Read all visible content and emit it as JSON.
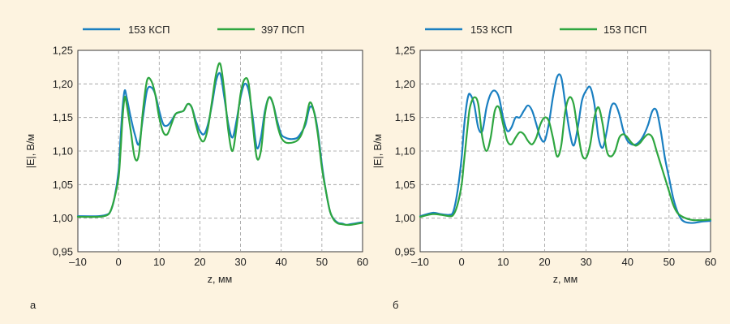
{
  "chart_data": [
    {
      "type": "line",
      "panel_label": "а",
      "xlabel": "z, мм",
      "ylabel": "|E|, В/м",
      "xlim": [
        -10,
        60
      ],
      "ylim": [
        0.95,
        1.25
      ],
      "x_ticks": [
        -10,
        0,
        10,
        20,
        30,
        40,
        50,
        60
      ],
      "x_tick_labels": [
        "–10",
        "0",
        "10",
        "20",
        "30",
        "40",
        "50",
        "60"
      ],
      "y_ticks": [
        0.95,
        1.0,
        1.05,
        1.1,
        1.15,
        1.2,
        1.25
      ],
      "y_tick_labels": [
        "0,95",
        "1,00",
        "1,05",
        "1,10",
        "1,15",
        "1,20",
        "1,25"
      ],
      "grid": true,
      "legend_position": "top",
      "series": [
        {
          "name": "153 КСП",
          "color": "#1a7fc1",
          "x": [
            -10,
            -5,
            -3,
            -2,
            -1,
            0,
            0.5,
            1,
            1.5,
            2,
            3,
            4,
            5,
            6,
            7,
            8,
            9,
            10,
            11,
            12,
            13,
            14,
            15,
            16,
            17,
            18,
            19,
            20,
            21,
            22,
            23,
            24,
            25,
            26,
            27,
            28,
            29,
            30,
            31,
            32,
            33,
            34,
            35,
            36,
            37,
            38,
            39,
            40,
            41,
            42,
            43,
            44,
            45,
            46,
            47,
            48,
            49,
            50,
            51,
            52,
            53,
            54,
            55,
            56,
            57,
            58,
            60
          ],
          "y": [
            1.003,
            1.003,
            1.005,
            1.01,
            1.03,
            1.07,
            1.12,
            1.165,
            1.19,
            1.18,
            1.15,
            1.125,
            1.11,
            1.15,
            1.19,
            1.195,
            1.185,
            1.16,
            1.14,
            1.138,
            1.145,
            1.155,
            1.158,
            1.16,
            1.17,
            1.165,
            1.145,
            1.13,
            1.125,
            1.14,
            1.17,
            1.205,
            1.215,
            1.18,
            1.14,
            1.12,
            1.145,
            1.18,
            1.2,
            1.19,
            1.15,
            1.105,
            1.12,
            1.16,
            1.18,
            1.17,
            1.145,
            1.125,
            1.12,
            1.118,
            1.118,
            1.12,
            1.128,
            1.14,
            1.165,
            1.16,
            1.13,
            1.08,
            1.04,
            1.01,
            0.998,
            0.993,
            0.992,
            0.99,
            0.991,
            0.992,
            0.994
          ]
        },
        {
          "name": "397 ПСП",
          "color": "#2ea640",
          "x": [
            -10,
            -5,
            -3,
            -2,
            -1,
            0,
            0.5,
            1,
            1.5,
            2,
            3,
            4,
            5,
            6,
            7,
            8,
            9,
            10,
            11,
            12,
            13,
            14,
            15,
            16,
            17,
            18,
            19,
            20,
            21,
            22,
            23,
            24,
            25,
            26,
            27,
            28,
            29,
            30,
            31,
            32,
            33,
            34,
            35,
            36,
            37,
            38,
            39,
            40,
            41,
            42,
            43,
            44,
            45,
            46,
            47,
            48,
            49,
            50,
            51,
            52,
            53,
            54,
            55,
            56,
            57,
            58,
            60
          ],
          "y": [
            1.002,
            1.002,
            1.004,
            1.01,
            1.03,
            1.06,
            1.1,
            1.15,
            1.18,
            1.17,
            1.13,
            1.09,
            1.095,
            1.16,
            1.205,
            1.205,
            1.185,
            1.15,
            1.128,
            1.125,
            1.14,
            1.155,
            1.158,
            1.16,
            1.17,
            1.165,
            1.14,
            1.12,
            1.115,
            1.135,
            1.175,
            1.215,
            1.23,
            1.19,
            1.13,
            1.1,
            1.135,
            1.185,
            1.207,
            1.2,
            1.14,
            1.09,
            1.1,
            1.155,
            1.18,
            1.17,
            1.14,
            1.12,
            1.113,
            1.112,
            1.113,
            1.116,
            1.125,
            1.145,
            1.172,
            1.16,
            1.125,
            1.075,
            1.04,
            1.01,
            0.997,
            0.992,
            0.991,
            0.99,
            0.99,
            0.991,
            0.993
          ]
        }
      ]
    },
    {
      "type": "line",
      "panel_label": "б",
      "xlabel": "z, мм",
      "ylabel": "|E|, В/м",
      "xlim": [
        -10,
        60
      ],
      "ylim": [
        0.95,
        1.25
      ],
      "x_ticks": [
        -10,
        0,
        10,
        20,
        30,
        40,
        50,
        60
      ],
      "x_tick_labels": [
        "–10",
        "0",
        "10",
        "20",
        "30",
        "40",
        "50",
        "60"
      ],
      "y_ticks": [
        0.95,
        1.0,
        1.05,
        1.1,
        1.15,
        1.2,
        1.25
      ],
      "y_tick_labels": [
        "0,95",
        "1,00",
        "1,05",
        "1,10",
        "1,15",
        "1,20",
        "1,25"
      ],
      "grid": true,
      "legend_position": "top",
      "series": [
        {
          "name": "153 КСП",
          "color": "#1a7fc1",
          "x": [
            -10,
            -7,
            -5,
            -3,
            -2,
            -1,
            0,
            0.5,
            1,
            1.5,
            2,
            3,
            4,
            5,
            6,
            7,
            8,
            9,
            10,
            11,
            12,
            13,
            14,
            15,
            16,
            17,
            18,
            19,
            20,
            21,
            22,
            23,
            24,
            25,
            26,
            27,
            28,
            29,
            30,
            31,
            32,
            33,
            34,
            35,
            36,
            37,
            38,
            39,
            40,
            41,
            42,
            43,
            44,
            45,
            46,
            47,
            48,
            49,
            50,
            51,
            52,
            53,
            54,
            55,
            56,
            57,
            58,
            60
          ],
          "y": [
            1.003,
            1.008,
            1.006,
            1.005,
            1.01,
            1.04,
            1.09,
            1.13,
            1.16,
            1.18,
            1.185,
            1.17,
            1.135,
            1.13,
            1.165,
            1.185,
            1.19,
            1.18,
            1.15,
            1.13,
            1.135,
            1.15,
            1.15,
            1.16,
            1.168,
            1.16,
            1.14,
            1.12,
            1.115,
            1.14,
            1.18,
            1.21,
            1.21,
            1.17,
            1.13,
            1.108,
            1.135,
            1.175,
            1.19,
            1.195,
            1.17,
            1.12,
            1.105,
            1.13,
            1.165,
            1.17,
            1.155,
            1.13,
            1.115,
            1.11,
            1.11,
            1.115,
            1.125,
            1.14,
            1.16,
            1.16,
            1.13,
            1.09,
            1.06,
            1.03,
            1.01,
            0.998,
            0.994,
            0.993,
            0.993,
            0.994,
            0.995,
            0.996
          ]
        },
        {
          "name": "153 ПСП",
          "color": "#2ea640",
          "x": [
            -10,
            -7,
            -5,
            -3,
            -2,
            -1,
            0,
            0.5,
            1,
            1.5,
            2,
            3,
            4,
            5,
            6,
            7,
            8,
            9,
            10,
            11,
            12,
            13,
            14,
            15,
            16,
            17,
            18,
            19,
            20,
            21,
            22,
            23,
            24,
            25,
            26,
            27,
            28,
            29,
            30,
            31,
            32,
            33,
            34,
            35,
            36,
            37,
            38,
            39,
            40,
            41,
            42,
            43,
            44,
            45,
            46,
            47,
            48,
            49,
            50,
            51,
            52,
            53,
            54,
            55,
            56,
            57,
            58,
            60
          ],
          "y": [
            1.002,
            1.006,
            1.005,
            1.003,
            1.005,
            1.02,
            1.05,
            1.08,
            1.11,
            1.14,
            1.165,
            1.18,
            1.17,
            1.12,
            1.1,
            1.12,
            1.16,
            1.165,
            1.14,
            1.115,
            1.11,
            1.12,
            1.128,
            1.125,
            1.115,
            1.11,
            1.12,
            1.14,
            1.15,
            1.145,
            1.12,
            1.092,
            1.108,
            1.16,
            1.18,
            1.17,
            1.13,
            1.095,
            1.09,
            1.11,
            1.15,
            1.165,
            1.14,
            1.1,
            1.092,
            1.1,
            1.12,
            1.125,
            1.12,
            1.112,
            1.108,
            1.112,
            1.12,
            1.125,
            1.12,
            1.1,
            1.08,
            1.06,
            1.04,
            1.02,
            1.008,
            1.003,
            1.0,
            0.998,
            0.997,
            0.997,
            0.997,
            0.998
          ]
        }
      ]
    }
  ]
}
